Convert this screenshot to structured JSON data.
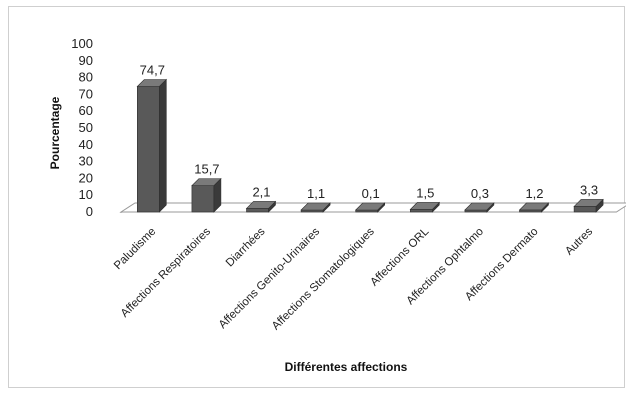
{
  "chart_data": {
    "type": "bar",
    "categories": [
      "Paludisme",
      "Affections Respiratoires",
      "Diarrhées",
      "Affections Genito-Urinaires",
      "Affections Stomatologiques",
      "Affections ORL",
      "Affections  Ophtalmo",
      "Affections Dermato",
      "Autres"
    ],
    "values": [
      74.7,
      15.7,
      2.1,
      1.1,
      0.1,
      1.5,
      0.3,
      1.2,
      3.3
    ],
    "value_labels": [
      "74,7",
      "15,7",
      "2,1",
      "1,1",
      "0,1",
      "1,5",
      "0,3",
      "1,2",
      "3,3"
    ],
    "title": "",
    "xlabel": "Différentes affections",
    "ylabel": "Pourcentage",
    "ylim": [
      0,
      100
    ],
    "yticks": [
      "0",
      "10",
      "20",
      "30",
      "40",
      "50",
      "60",
      "70",
      "80",
      "90",
      "100"
    ],
    "grid": false,
    "legend": "none",
    "style": "3d-column",
    "colors": {
      "bar_front": "#595959",
      "bar_side": "#3a3a3a",
      "bar_top": "#7a7a7a",
      "floor": "#ffffff",
      "floor_edge": "#9a9a9a"
    }
  }
}
